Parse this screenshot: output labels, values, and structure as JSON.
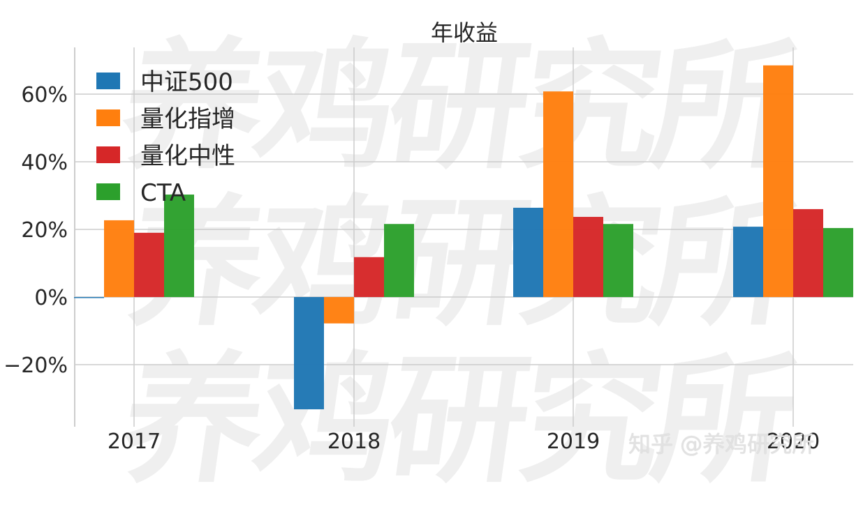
{
  "chart_data": {
    "type": "bar",
    "title": "年收益",
    "xlabel": "",
    "ylabel": "",
    "categories": [
      "2017",
      "2018",
      "2019",
      "2020"
    ],
    "series": [
      {
        "name": "中证500",
        "color": "#1f77b4",
        "values": [
          -0.2,
          -33.2,
          26.4,
          20.8
        ]
      },
      {
        "name": "量化指增",
        "color": "#ff7f0e",
        "values": [
          22.7,
          -7.8,
          60.8,
          68.5
        ]
      },
      {
        "name": "量化中性",
        "color": "#d62728",
        "values": [
          19.0,
          11.8,
          23.7,
          26.0
        ]
      },
      {
        "name": "CTA",
        "color": "#2ca02c",
        "values": [
          30.3,
          21.6,
          21.6,
          20.4
        ]
      }
    ],
    "yticks": [
      -20,
      0,
      20,
      40,
      60
    ],
    "ytick_labels": [
      "−20%",
      "0%",
      "20%",
      "40%",
      "60%"
    ],
    "ylim": [
      -39,
      74
    ],
    "grid": true,
    "legend_position": "upper left"
  },
  "watermark": {
    "text": "养鸡研究所",
    "credit": "知乎 @养鸡研究所"
  }
}
